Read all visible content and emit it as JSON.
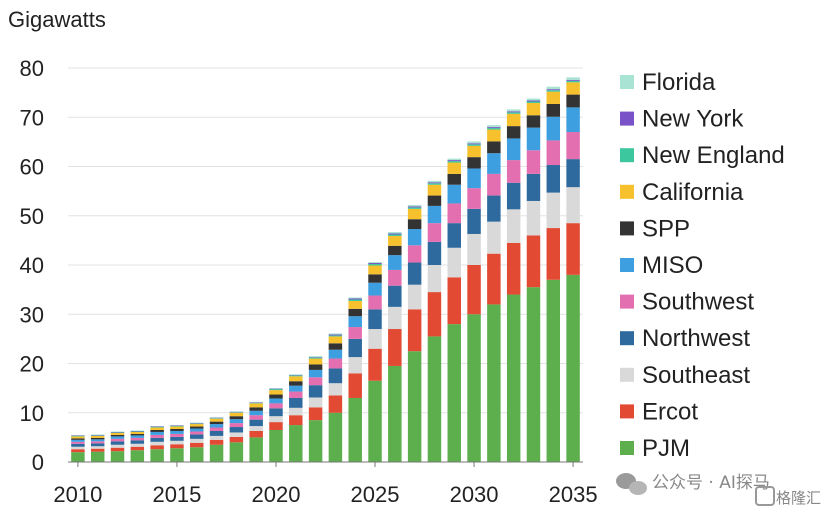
{
  "chart_data": {
    "type": "stacked_bar",
    "unit_label": "Gigawatts",
    "ylim": [
      0,
      80
    ],
    "y_ticks": [
      0,
      10,
      20,
      30,
      40,
      50,
      60,
      70,
      80
    ],
    "x_tick_labels": [
      "2010",
      "2015",
      "2020",
      "2025",
      "2030",
      "2035"
    ],
    "categories": [
      2010,
      2011,
      2012,
      2013,
      2014,
      2015,
      2016,
      2017,
      2018,
      2019,
      2020,
      2021,
      2022,
      2023,
      2024,
      2025,
      2026,
      2027,
      2028,
      2029,
      2030,
      2031,
      2032,
      2033,
      2034,
      2035
    ],
    "grid": true,
    "legend_position": "right",
    "series": [
      {
        "name": "PJM",
        "color": "#5DAF4E",
        "values": [
          2,
          2.1,
          2.2,
          2.4,
          2.6,
          2.8,
          3,
          3.5,
          4,
          5,
          6.5,
          7.5,
          8.5,
          10,
          13,
          16.5,
          19.5,
          22.5,
          25.5,
          28,
          30,
          32,
          34,
          35.5,
          37,
          38
        ]
      },
      {
        "name": "Ercot",
        "color": "#E24A33",
        "values": [
          0.6,
          0.6,
          0.7,
          0.7,
          0.8,
          0.8,
          0.9,
          1,
          1.1,
          1.3,
          1.6,
          2,
          2.6,
          3.5,
          5,
          6.5,
          7.5,
          8.5,
          9,
          9.5,
          10,
          10.3,
          10.5,
          10.5,
          10.5,
          10.5
        ]
      },
      {
        "name": "Southeast",
        "color": "#D9D9D9",
        "values": [
          0.5,
          0.5,
          0.6,
          0.6,
          0.7,
          0.7,
          0.8,
          0.8,
          0.9,
          1,
          1.2,
          1.5,
          2,
          2.5,
          3.3,
          4,
          4.5,
          5,
          5.5,
          6,
          6.3,
          6.5,
          6.8,
          7,
          7.2,
          7.3
        ]
      },
      {
        "name": "Northwest",
        "color": "#2E6A9E",
        "values": [
          0.6,
          0.6,
          0.7,
          0.7,
          0.8,
          0.8,
          0.9,
          1,
          1.1,
          1.3,
          1.6,
          2,
          2.5,
          3,
          3.7,
          4,
          4.3,
          4.5,
          4.7,
          5,
          5.1,
          5.3,
          5.4,
          5.5,
          5.6,
          5.7
        ]
      },
      {
        "name": "Southwest",
        "color": "#E46FB0",
        "values": [
          0.4,
          0.4,
          0.5,
          0.5,
          0.6,
          0.6,
          0.6,
          0.7,
          0.8,
          0.9,
          1,
          1.3,
          1.6,
          2,
          2.4,
          2.8,
          3.2,
          3.5,
          3.8,
          4,
          4.2,
          4.4,
          4.6,
          4.8,
          5,
          5.5
        ]
      },
      {
        "name": "MISO",
        "color": "#3E9FE0",
        "values": [
          0.4,
          0.4,
          0.5,
          0.5,
          0.6,
          0.6,
          0.6,
          0.7,
          0.8,
          0.9,
          1,
          1.2,
          1.5,
          1.8,
          2.2,
          2.6,
          3,
          3.3,
          3.5,
          3.8,
          4,
          4.2,
          4.4,
          4.6,
          4.8,
          5
        ]
      },
      {
        "name": "SPP",
        "color": "#333333",
        "values": [
          0.3,
          0.3,
          0.3,
          0.3,
          0.4,
          0.4,
          0.4,
          0.5,
          0.6,
          0.7,
          0.8,
          0.9,
          1.1,
          1.3,
          1.5,
          1.7,
          1.9,
          2,
          2.1,
          2.2,
          2.3,
          2.4,
          2.5,
          2.5,
          2.6,
          2.6
        ]
      },
      {
        "name": "California",
        "color": "#F6C12C",
        "values": [
          0.4,
          0.4,
          0.4,
          0.4,
          0.5,
          0.5,
          0.5,
          0.6,
          0.7,
          0.8,
          0.9,
          1,
          1.2,
          1.4,
          1.6,
          1.8,
          2,
          2.1,
          2.2,
          2.3,
          2.3,
          2.4,
          2.5,
          2.5,
          2.5,
          2.5
        ]
      },
      {
        "name": "New England",
        "color": "#3CC79E",
        "values": [
          0.1,
          0.1,
          0.1,
          0.1,
          0.1,
          0.1,
          0.1,
          0.1,
          0.1,
          0.1,
          0.2,
          0.2,
          0.2,
          0.2,
          0.3,
          0.3,
          0.3,
          0.3,
          0.3,
          0.3,
          0.3,
          0.3,
          0.3,
          0.3,
          0.3,
          0.3
        ]
      },
      {
        "name": "New York",
        "color": "#7A52C7",
        "values": [
          0.1,
          0.1,
          0.1,
          0.1,
          0.1,
          0.1,
          0.1,
          0.1,
          0.1,
          0.1,
          0.1,
          0.1,
          0.1,
          0.2,
          0.2,
          0.2,
          0.2,
          0.2,
          0.2,
          0.2,
          0.2,
          0.2,
          0.2,
          0.2,
          0.2,
          0.2
        ]
      },
      {
        "name": "Florida",
        "color": "#A8E3D3",
        "values": [
          0.1,
          0.1,
          0.1,
          0.1,
          0.1,
          0.1,
          0.1,
          0.1,
          0.1,
          0.1,
          0.1,
          0.1,
          0.2,
          0.2,
          0.2,
          0.2,
          0.3,
          0.3,
          0.3,
          0.3,
          0.4,
          0.4,
          0.4,
          0.4,
          0.5,
          0.5
        ]
      }
    ]
  },
  "watermark": {
    "text": "公众号 · AI探马",
    "logo_text": "格隆汇"
  }
}
